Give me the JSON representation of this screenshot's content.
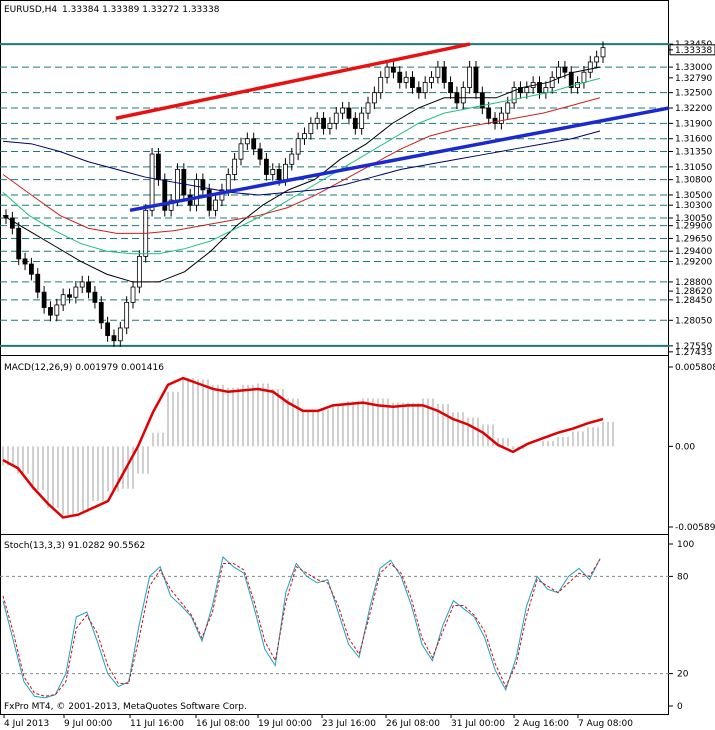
{
  "header": {
    "symbol": "EURUSD,H4",
    "ohlc": "1.33384 1.33389 1.33272 1.33338"
  },
  "footer": {
    "copyright": "FxPro MT4, © 2001-2013, MetaQuotes Software Corp."
  },
  "colors": {
    "axis": "#000000",
    "level_line": "#1a7a7a",
    "trend_red": "#e81010",
    "trend_blue": "#1a2ad0",
    "ma_black": "#000000",
    "ma_green": "#20c080",
    "ma_red": "#cc2020",
    "ma_navy": "#000070",
    "macd_line": "#e00000",
    "macd_hist": "#a0a0a0",
    "stoch_main": "#20a0c0",
    "stoch_signal": "#d01010"
  },
  "chart_data": [
    {
      "type": "candlestick",
      "title": "EURUSD,H4",
      "ylim": [
        1.2743,
        1.3396
      ],
      "current_price": "1.33338",
      "price_labels": [
        "1.33450",
        "1.33338",
        "1.33000",
        "1.32790",
        "1.32500",
        "1.32200",
        "1.31900",
        "1.31600",
        "1.31350",
        "1.31050",
        "1.30800",
        "1.30500",
        "1.30300",
        "1.30050",
        "1.29900",
        "1.29650",
        "1.29400",
        "1.29200",
        "1.28800",
        "1.28620",
        "1.28450",
        "1.28050",
        "1.27550",
        "1.27433"
      ],
      "levels": [
        1.3345,
        1.33,
        1.325,
        1.322,
        1.319,
        1.316,
        1.3135,
        1.3105,
        1.308,
        1.305,
        1.303,
        1.3005,
        1.299,
        1.2965,
        1.294,
        1.292,
        1.288,
        1.2845,
        1.2805,
        1.2755
      ],
      "x_labels": [
        "4 Jul 2013",
        "9 Jul 00:00",
        "11 Jul 16:00",
        "16 Jul 08:00",
        "19 Jul 00:00",
        "23 Jul 16:00",
        "26 Jul 08:00",
        "31 Jul 00:00",
        "2 Aug 16:00",
        "7 Aug 08:00"
      ],
      "closes": [
        1.3005,
        1.2985,
        1.2925,
        1.2915,
        1.2895,
        1.286,
        1.283,
        1.2815,
        1.2835,
        1.2855,
        1.285,
        1.287,
        1.288,
        1.286,
        1.284,
        1.28,
        1.2775,
        1.2765,
        1.279,
        1.284,
        1.287,
        1.293,
        1.302,
        1.313,
        1.308,
        1.302,
        1.304,
        1.31,
        1.305,
        1.303,
        1.308,
        1.306,
        1.302,
        1.304,
        1.306,
        1.309,
        1.312,
        1.315,
        1.316,
        1.314,
        1.312,
        1.309,
        1.31,
        1.308,
        1.311,
        1.313,
        1.316,
        1.317,
        1.319,
        1.32,
        1.318,
        1.319,
        1.321,
        1.322,
        1.32,
        1.318,
        1.321,
        1.323,
        1.325,
        1.328,
        1.33,
        1.329,
        1.327,
        1.328,
        1.326,
        1.325,
        1.327,
        1.328,
        1.33,
        1.327,
        1.325,
        1.323,
        1.326,
        1.33,
        1.325,
        1.322,
        1.32,
        1.319,
        1.321,
        1.323,
        1.326,
        1.325,
        1.326,
        1.327,
        1.325,
        1.326,
        1.328,
        1.33,
        1.329,
        1.326,
        1.327,
        1.329,
        1.331,
        1.332,
        1.3338
      ],
      "moving_averages": [
        {
          "values": [
            1.301,
            1.298,
            1.295,
            1.292,
            1.2895,
            1.288,
            1.288,
            1.29,
            1.294,
            1.299,
            1.303,
            1.306,
            1.308,
            1.312,
            1.315,
            1.319,
            1.322,
            1.324,
            1.324,
            1.324,
            1.326,
            1.327,
            1.329,
            1.33
          ]
        },
        {
          "values": [
            1.3055,
            1.301,
            1.298,
            1.2955,
            1.294,
            1.2935,
            1.2935,
            1.2945,
            1.296,
            1.2985,
            1.301,
            1.304,
            1.307,
            1.31,
            1.313,
            1.316,
            1.319,
            1.321,
            1.322,
            1.323,
            1.324,
            1.325,
            1.3265,
            1.3278
          ]
        },
        {
          "values": [
            1.309,
            1.305,
            1.301,
            1.2985,
            1.2975,
            1.2975,
            1.298,
            1.299,
            1.3,
            1.301,
            1.3025,
            1.305,
            1.308,
            1.311,
            1.314,
            1.3165,
            1.318,
            1.319,
            1.32,
            1.321,
            1.3225,
            1.324
          ]
        },
        {
          "values": [
            1.3155,
            1.315,
            1.3135,
            1.3115,
            1.31,
            1.3085,
            1.3075,
            1.3065,
            1.3055,
            1.305,
            1.3055,
            1.306,
            1.307,
            1.3085,
            1.31,
            1.311,
            1.312,
            1.313,
            1.314,
            1.315,
            1.316,
            1.3175
          ]
        }
      ],
      "trendlines": [
        {
          "from": [
            "9 Jul 16:00",
            1.32
          ],
          "to": [
            "31 Jul 00:00",
            1.3345
          ]
        },
        {
          "from": [
            "10 Jul 04:00",
            1.302
          ],
          "to": [
            "8 Aug 20:00",
            1.322
          ]
        }
      ]
    },
    {
      "type": "line",
      "title": "MACD(12,26,9) 0.001979 0.001416",
      "ylim": [
        -0.005899,
        0.005808
      ],
      "tick_labels": [
        "0.005808",
        "0.00",
        "-0.005899"
      ],
      "series": [
        {
          "values": [
            -0.0014,
            -0.002,
            -0.0032,
            -0.0045,
            -0.005,
            -0.0048,
            -0.004,
            -0.0033,
            -0.0031,
            -0.002,
            0.001,
            0.004,
            0.005,
            0.0049,
            0.0045,
            0.0043,
            0.0045,
            0.0046,
            0.0042,
            0.0035,
            0.0027,
            0.0027,
            0.003,
            0.0033,
            0.0035,
            0.0035,
            0.0032,
            0.0032,
            0.0035,
            0.0031,
            0.0025,
            0.0021,
            0.0016,
            0.0006,
            -0.0002,
            0.0,
            0.0004,
            0.0007,
            0.0011,
            0.0014,
            0.0018
          ]
        },
        {
          "values": [
            -0.001,
            -0.0016,
            -0.003,
            -0.0042,
            -0.0052,
            -0.005,
            -0.0045,
            -0.004,
            -0.002,
            0.0,
            0.0025,
            0.0045,
            0.005,
            0.0046,
            0.0042,
            0.004,
            0.0041,
            0.0042,
            0.004,
            0.0032,
            0.0026,
            0.0026,
            0.003,
            0.0031,
            0.0032,
            0.003,
            0.0029,
            0.003,
            0.003,
            0.0026,
            0.002,
            0.0016,
            0.001,
            0.0001,
            -0.0004,
            0.0002,
            0.0006,
            0.001,
            0.0013,
            0.0017,
            0.002
          ]
        }
      ]
    },
    {
      "type": "line",
      "title": "Stoch(13,3,3) 91.0282 90.5562",
      "ylim": [
        0,
        100
      ],
      "tick_labels": [
        "100",
        "80",
        "20",
        "0"
      ],
      "series": [
        {
          "values": [
            65,
            40,
            15,
            6,
            5,
            7,
            20,
            55,
            58,
            40,
            20,
            12,
            15,
            50,
            80,
            86,
            68,
            62,
            55,
            40,
            62,
            92,
            86,
            82,
            60,
            35,
            25,
            70,
            88,
            80,
            76,
            78,
            58,
            38,
            30,
            60,
            85,
            90,
            80,
            62,
            38,
            28,
            50,
            65,
            60,
            55,
            42,
            22,
            10,
            30,
            62,
            80,
            72,
            70,
            80,
            85,
            78,
            91
          ]
        },
        {
          "values": [
            68,
            45,
            18,
            8,
            6,
            7,
            15,
            48,
            56,
            45,
            25,
            14,
            14,
            42,
            74,
            84,
            72,
            64,
            56,
            42,
            58,
            88,
            88,
            84,
            64,
            40,
            28,
            64,
            86,
            82,
            78,
            76,
            62,
            42,
            32,
            56,
            82,
            88,
            82,
            66,
            42,
            30,
            46,
            62,
            62,
            56,
            46,
            26,
            12,
            26,
            56,
            78,
            74,
            70,
            76,
            82,
            80,
            90.5
          ]
        }
      ],
      "levels": [
        80,
        20
      ]
    }
  ]
}
